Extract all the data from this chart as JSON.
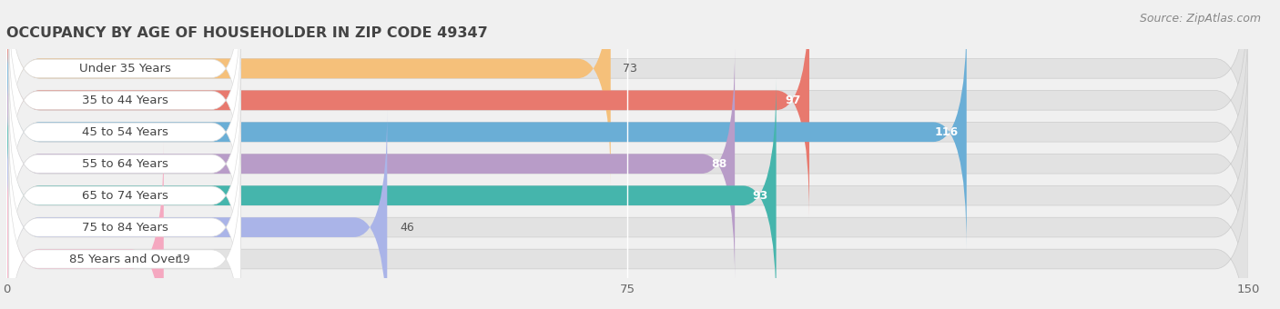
{
  "title": "OCCUPANCY BY AGE OF HOUSEHOLDER IN ZIP CODE 49347",
  "source": "Source: ZipAtlas.com",
  "categories": [
    "Under 35 Years",
    "35 to 44 Years",
    "45 to 54 Years",
    "55 to 64 Years",
    "65 to 74 Years",
    "75 to 84 Years",
    "85 Years and Over"
  ],
  "values": [
    73,
    97,
    116,
    88,
    93,
    46,
    19
  ],
  "bar_colors": [
    "#f5c07a",
    "#e8796e",
    "#6aaed6",
    "#b89cc8",
    "#45b5ac",
    "#aab4e8",
    "#f5a8c0"
  ],
  "xlim": [
    0,
    150
  ],
  "xticks": [
    0,
    75,
    150
  ],
  "background_color": "#f0f0f0",
  "bar_bg_color": "#e2e2e2",
  "title_fontsize": 11.5,
  "label_fontsize": 9.5,
  "value_fontsize": 9,
  "source_fontsize": 9
}
